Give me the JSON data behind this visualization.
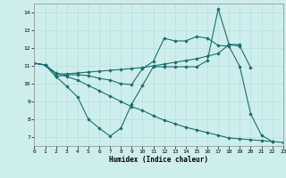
{
  "xlabel": "Humidex (Indice chaleur)",
  "bg_color": "#ceeeed",
  "grid_color": "#b8dede",
  "line_color": "#1a6e6e",
  "xlim": [
    0,
    23
  ],
  "ylim": [
    6.5,
    14.5
  ],
  "yticks": [
    7,
    8,
    9,
    10,
    11,
    12,
    13,
    14
  ],
  "xticks": [
    0,
    1,
    2,
    3,
    4,
    5,
    6,
    7,
    8,
    9,
    10,
    11,
    12,
    13,
    14,
    15,
    16,
    17,
    18,
    19,
    20,
    21,
    22,
    23
  ],
  "series": [
    {
      "x": [
        0,
        1,
        2,
        3,
        4,
        5,
        6,
        7,
        8,
        9,
        10,
        11,
        12,
        13,
        14,
        15,
        16,
        17,
        18,
        19,
        20,
        21,
        22,
        23
      ],
      "y": [
        11.15,
        11.05,
        10.6,
        10.4,
        10.2,
        9.9,
        9.6,
        9.3,
        9.0,
        8.7,
        8.5,
        8.2,
        7.95,
        7.75,
        7.55,
        7.4,
        7.25,
        7.1,
        6.95,
        6.9,
        6.85,
        6.8,
        6.75,
        6.7
      ]
    },
    {
      "x": [
        0,
        1,
        2,
        3,
        4,
        5,
        6,
        7,
        8,
        9,
        10,
        11,
        12,
        13,
        14,
        15,
        16,
        17,
        18,
        19
      ],
      "y": [
        11.15,
        11.05,
        10.55,
        10.55,
        10.6,
        10.65,
        10.7,
        10.75,
        10.8,
        10.85,
        10.9,
        11.0,
        11.1,
        11.2,
        11.3,
        11.4,
        11.55,
        11.7,
        12.2,
        12.2
      ]
    },
    {
      "x": [
        0,
        1,
        2,
        3,
        4,
        5,
        6,
        7,
        8,
        9,
        10,
        11,
        12,
        13,
        14,
        15,
        16,
        17,
        18,
        19,
        20
      ],
      "y": [
        11.15,
        11.05,
        10.4,
        9.85,
        9.25,
        8.0,
        7.5,
        7.05,
        7.5,
        8.85,
        9.9,
        10.95,
        10.95,
        10.95,
        10.95,
        10.95,
        11.3,
        14.2,
        12.2,
        12.1,
        10.9
      ]
    },
    {
      "x": [
        0,
        1,
        2,
        3,
        4,
        5,
        6,
        7,
        8,
        9,
        10,
        11,
        12,
        13,
        14,
        15,
        16,
        17,
        18,
        19,
        20,
        21,
        22
      ],
      "y": [
        11.15,
        11.05,
        10.4,
        10.5,
        10.5,
        10.45,
        10.3,
        10.2,
        10.0,
        9.95,
        10.85,
        11.25,
        12.55,
        12.4,
        12.4,
        12.65,
        12.55,
        12.15,
        12.1,
        10.95,
        8.3,
        7.1,
        6.75
      ]
    }
  ]
}
